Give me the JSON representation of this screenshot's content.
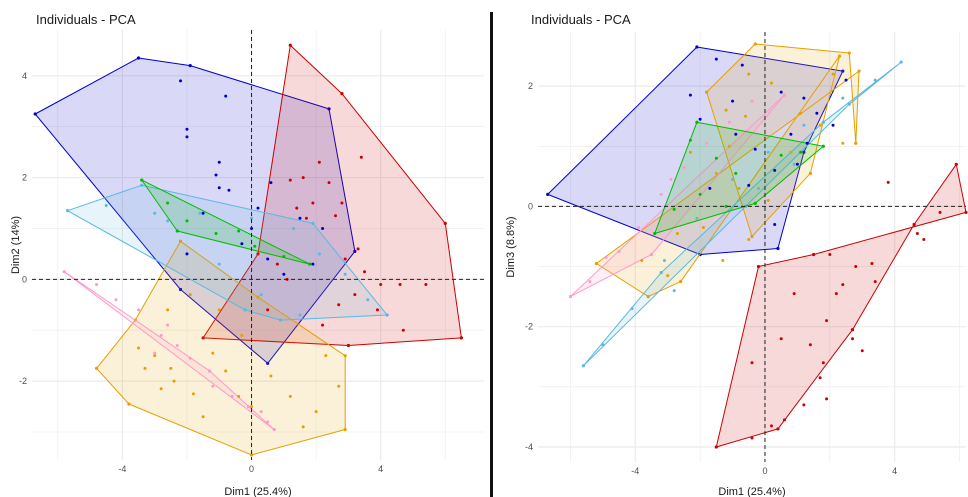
{
  "chart_data": [
    {
      "type": "scatter",
      "title": "Individuals - PCA",
      "xlabel": "Dim1 (25.4%)",
      "ylabel": "Dim2 (14%)",
      "xlim": [
        -6.8,
        7.2
      ],
      "ylim": [
        -3.55,
        4.9
      ],
      "xticks": [
        -4,
        0,
        4
      ],
      "yticks": [
        -2,
        0,
        2,
        4
      ],
      "grid": true,
      "reference_lines": {
        "x": 0,
        "y": 0
      },
      "series": [
        {
          "color": "#0000cc",
          "hull": [
            [
              -6.7,
              3.25
            ],
            [
              -3.5,
              4.35
            ],
            [
              -1.9,
              4.2
            ],
            [
              2.4,
              3.35
            ],
            [
              3.2,
              0.55
            ],
            [
              0.5,
              -1.65
            ],
            [
              -2.2,
              -0.2
            ]
          ],
          "points": [
            [
              -2.2,
              3.9
            ],
            [
              -0.8,
              3.6
            ],
            [
              -2.0,
              2.95
            ],
            [
              -2.0,
              2.8
            ],
            [
              -1.0,
              2.3
            ],
            [
              -1.1,
              2.05
            ],
            [
              -1.0,
              1.8
            ],
            [
              -0.7,
              1.75
            ],
            [
              0.0,
              1.0
            ],
            [
              -0.3,
              0.7
            ],
            [
              0.5,
              0.4
            ],
            [
              1.0,
              0.1
            ],
            [
              -1.5,
              1.3
            ],
            [
              0.2,
              1.4
            ],
            [
              0.6,
              1.9
            ],
            [
              1.5,
              1.2
            ],
            [
              2.2,
              1.0
            ],
            [
              -2.0,
              0.5
            ],
            [
              1.9,
              0.3
            ]
          ]
        },
        {
          "color": "#cc0000",
          "hull": [
            [
              1.2,
              4.6
            ],
            [
              2.8,
              3.65
            ],
            [
              6.0,
              1.1
            ],
            [
              6.5,
              -1.15
            ],
            [
              3.0,
              -1.3
            ],
            [
              -1.5,
              -1.15
            ],
            [
              0.2,
              0.5
            ]
          ],
          "points": [
            [
              3.4,
              2.4
            ],
            [
              2.1,
              2.3
            ],
            [
              1.6,
              2.0
            ],
            [
              1.2,
              1.95
            ],
            [
              2.4,
              1.9
            ],
            [
              1.9,
              1.5
            ],
            [
              1.4,
              1.4
            ],
            [
              2.8,
              1.5
            ],
            [
              2.6,
              1.25
            ],
            [
              1.7,
              1.2
            ],
            [
              3.3,
              0.6
            ],
            [
              2.9,
              0.4
            ],
            [
              3.5,
              0.15
            ],
            [
              4.0,
              -0.1
            ],
            [
              4.6,
              -0.1
            ],
            [
              5.4,
              -0.1
            ],
            [
              3.2,
              -0.3
            ],
            [
              3.9,
              -0.6
            ],
            [
              4.7,
              -1.0
            ],
            [
              2.2,
              -0.9
            ],
            [
              2.7,
              -0.5
            ],
            [
              0.8,
              0.3
            ],
            [
              1.1,
              0.0
            ],
            [
              0.5,
              -0.6
            ]
          ]
        },
        {
          "color": "#e69f00",
          "hull": [
            [
              -2.2,
              0.75
            ],
            [
              -3.6,
              -0.8
            ],
            [
              -4.8,
              -1.75
            ],
            [
              -3.8,
              -2.45
            ],
            [
              0.0,
              -3.45
            ],
            [
              2.9,
              -2.95
            ],
            [
              2.9,
              -1.5
            ],
            [
              0.2,
              -0.35
            ]
          ],
          "points": [
            [
              -2.6,
              -0.6
            ],
            [
              -3.5,
              -1.35
            ],
            [
              -3.0,
              -1.5
            ],
            [
              -2.5,
              -1.75
            ],
            [
              -3.3,
              -1.75
            ],
            [
              -2.4,
              -2.0
            ],
            [
              -1.8,
              -2.25
            ],
            [
              -1.2,
              -1.45
            ],
            [
              -0.8,
              -1.8
            ],
            [
              -0.4,
              -2.3
            ],
            [
              0.6,
              -1.9
            ],
            [
              1.2,
              -2.3
            ],
            [
              2.0,
              -2.6
            ],
            [
              2.7,
              -2.1
            ],
            [
              -2.8,
              -2.15
            ],
            [
              -1.5,
              -2.7
            ],
            [
              0.0,
              -2.5
            ],
            [
              1.6,
              -2.9
            ],
            [
              2.3,
              -1.5
            ],
            [
              -0.3,
              -1.1
            ],
            [
              -1.0,
              -0.6
            ],
            [
              -1.9,
              -0.3
            ]
          ]
        },
        {
          "color": "#ff99cc",
          "hull": [
            [
              -5.8,
              0.15
            ],
            [
              -1.3,
              -1.8
            ],
            [
              0.7,
              -2.95
            ]
          ],
          "points": [
            [
              -4.2,
              -0.4
            ],
            [
              -3.5,
              -0.6
            ],
            [
              -2.8,
              -1.1
            ],
            [
              -2.3,
              -1.3
            ],
            [
              -1.9,
              -1.55
            ],
            [
              -1.2,
              -2.1
            ],
            [
              -0.6,
              -2.3
            ],
            [
              -0.1,
              -2.5
            ],
            [
              0.5,
              -2.8
            ],
            [
              -2.6,
              -0.9
            ],
            [
              -4.8,
              -0.1
            ],
            [
              -3.0,
              -1.45
            ],
            [
              0.3,
              -2.6
            ]
          ]
        },
        {
          "color": "#5bb8e0",
          "hull": [
            [
              -5.7,
              1.35
            ],
            [
              -3.4,
              1.85
            ],
            [
              1.9,
              1.1
            ],
            [
              4.2,
              -0.7
            ],
            [
              0.9,
              -0.8
            ],
            [
              -0.2,
              -0.6
            ]
          ],
          "points": [
            [
              -4.5,
              1.45
            ],
            [
              -3.0,
              1.3
            ],
            [
              -1.6,
              1.3
            ],
            [
              0.0,
              1.2
            ],
            [
              1.3,
              1.0
            ],
            [
              2.1,
              0.5
            ],
            [
              2.9,
              0.1
            ],
            [
              3.6,
              -0.4
            ],
            [
              0.3,
              -0.3
            ],
            [
              -1.0,
              0.3
            ],
            [
              -2.6,
              1.15
            ],
            [
              1.5,
              -0.7
            ]
          ]
        },
        {
          "color": "#00bb00",
          "hull": [
            [
              -3.4,
              1.95
            ],
            [
              1.8,
              0.3
            ],
            [
              -2.3,
              0.95
            ]
          ],
          "points": [
            [
              -2.0,
              1.15
            ],
            [
              -1.1,
              0.9
            ],
            [
              0.1,
              0.65
            ],
            [
              1.0,
              0.45
            ],
            [
              -2.6,
              1.5
            ],
            [
              -0.4,
              0.95
            ]
          ]
        }
      ]
    },
    {
      "type": "scatter",
      "title": "Individuals - PCA",
      "xlabel": "Dim1 (25.4%)",
      "ylabel": "Dim3 (8.8%)",
      "xlim": [
        -7.0,
        6.2
      ],
      "ylim": [
        -4.25,
        2.9
      ],
      "xticks": [
        -4,
        0,
        4
      ],
      "yticks": [
        -4,
        -2,
        0,
        2
      ],
      "grid": true,
      "reference_lines": {
        "x": 0,
        "y": 0
      },
      "series": [
        {
          "color": "#0000cc",
          "hull": [
            [
              -6.7,
              0.2
            ],
            [
              -2.1,
              2.65
            ],
            [
              2.4,
              2.25
            ],
            [
              1.2,
              0.9
            ],
            [
              0.4,
              -0.7
            ],
            [
              -2.0,
              -0.8
            ]
          ],
          "points": [
            [
              -1.5,
              2.45
            ],
            [
              -0.7,
              2.35
            ],
            [
              -2.3,
              1.85
            ],
            [
              -2.0,
              1.45
            ],
            [
              -1.0,
              1.75
            ],
            [
              0.5,
              1.9
            ],
            [
              1.2,
              1.8
            ],
            [
              1.6,
              1.55
            ],
            [
              0.8,
              1.2
            ],
            [
              1.3,
              1.05
            ],
            [
              -0.9,
              1.2
            ],
            [
              -0.3,
              0.95
            ],
            [
              0.3,
              0.6
            ],
            [
              1.0,
              0.7
            ],
            [
              -1.7,
              0.3
            ],
            [
              -0.5,
              0.35
            ],
            [
              0.3,
              -0.3
            ],
            [
              2.1,
              1.35
            ],
            [
              2.5,
              2.1
            ]
          ]
        },
        {
          "color": "#cc0000",
          "hull": [
            [
              -1.5,
              -4.0
            ],
            [
              0.4,
              -3.7
            ],
            [
              2.7,
              -2.05
            ],
            [
              4.6,
              -0.3
            ],
            [
              5.9,
              0.7
            ],
            [
              6.2,
              -0.1
            ],
            [
              1.5,
              -0.8
            ],
            [
              -0.2,
              -1.0
            ]
          ],
          "points": [
            [
              -0.4,
              -3.85
            ],
            [
              0.6,
              -3.55
            ],
            [
              3.8,
              0.4
            ],
            [
              4.7,
              -0.45
            ],
            [
              4.9,
              -0.55
            ],
            [
              5.4,
              -0.1
            ],
            [
              2.0,
              -0.8
            ],
            [
              2.2,
              -1.45
            ],
            [
              2.8,
              -1.0
            ],
            [
              3.3,
              -0.95
            ],
            [
              3.4,
              -1.25
            ],
            [
              1.9,
              -1.9
            ],
            [
              2.7,
              -2.2
            ],
            [
              1.4,
              -2.3
            ],
            [
              1.8,
              -2.6
            ],
            [
              1.9,
              -3.2
            ],
            [
              1.2,
              -3.3
            ],
            [
              0.2,
              -3.65
            ],
            [
              0.5,
              -2.2
            ],
            [
              2.4,
              -1.3
            ],
            [
              1.7,
              -2.85
            ],
            [
              -0.4,
              -2.6
            ],
            [
              0.9,
              -1.45
            ],
            [
              3.0,
              -2.4
            ]
          ]
        },
        {
          "color": "#e69f00",
          "hull": [
            [
              -5.2,
              -0.95
            ],
            [
              -3.6,
              -1.5
            ],
            [
              -2.6,
              -1.25
            ],
            [
              2.3,
              2.5
            ],
            [
              1.4,
              0.55
            ],
            [
              -0.4,
              -0.5
            ],
            [
              -1.8,
              1.9
            ],
            [
              -0.3,
              2.7
            ],
            [
              2.6,
              2.55
            ],
            [
              2.8,
              1.05
            ],
            [
              2.9,
              2.25
            ]
          ],
          "points": [
            [
              -0.5,
              2.2
            ],
            [
              0.2,
              2.05
            ],
            [
              -1.2,
              1.6
            ],
            [
              -0.6,
              1.5
            ],
            [
              1.7,
              1.35
            ],
            [
              2.4,
              1.05
            ],
            [
              -2.3,
              0.9
            ],
            [
              -1.5,
              0.55
            ],
            [
              -0.8,
              0.3
            ],
            [
              0.1,
              0.1
            ],
            [
              -1.9,
              -0.35
            ],
            [
              -2.7,
              -0.45
            ],
            [
              -1.3,
              -0.9
            ],
            [
              -0.5,
              -0.55
            ],
            [
              -3.0,
              -1.15
            ],
            [
              -3.8,
              -0.9
            ],
            [
              -1.1,
              1.0
            ],
            [
              0.8,
              0.9
            ],
            [
              1.1,
              1.55
            ],
            [
              2.1,
              2.2
            ]
          ]
        },
        {
          "color": "#ff99cc",
          "hull": [
            [
              -6.0,
              -1.5
            ],
            [
              -3.5,
              -0.8
            ],
            [
              0.6,
              1.85
            ]
          ],
          "points": [
            [
              -5.4,
              -1.25
            ],
            [
              -4.5,
              -0.75
            ],
            [
              -3.9,
              -0.35
            ],
            [
              -3.2,
              0.2
            ],
            [
              -2.5,
              0.65
            ],
            [
              -1.8,
              1.05
            ],
            [
              -1.1,
              1.4
            ],
            [
              -0.4,
              1.75
            ],
            [
              -4.9,
              -0.85
            ],
            [
              -2.9,
              0.45
            ]
          ]
        },
        {
          "color": "#5bb8e0",
          "hull": [
            [
              -5.6,
              -2.65
            ],
            [
              -3.2,
              -1.1
            ],
            [
              1.8,
              1.4
            ],
            [
              4.2,
              2.4
            ],
            [
              2.6,
              1.7
            ],
            [
              -0.6,
              0.0
            ]
          ],
          "points": [
            [
              -5.0,
              -2.3
            ],
            [
              -4.1,
              -1.7
            ],
            [
              -3.1,
              -0.9
            ],
            [
              -2.1,
              -0.2
            ],
            [
              -1.0,
              0.45
            ],
            [
              0.1,
              0.9
            ],
            [
              1.2,
              1.35
            ],
            [
              2.4,
              1.8
            ],
            [
              3.4,
              2.1
            ],
            [
              -0.2,
              0.3
            ],
            [
              -2.8,
              -1.4
            ],
            [
              0.9,
              0.7
            ]
          ]
        },
        {
          "color": "#00bb00",
          "hull": [
            [
              -3.4,
              -0.45
            ],
            [
              -2.1,
              1.4
            ],
            [
              1.8,
              1.0
            ],
            [
              -0.3,
              0.05
            ]
          ],
          "points": [
            [
              -2.3,
              1.1
            ],
            [
              -1.5,
              0.8
            ],
            [
              -0.9,
              0.55
            ],
            [
              -2.0,
              0.2
            ],
            [
              -2.8,
              -0.05
            ],
            [
              0.5,
              0.85
            ],
            [
              1.1,
              0.9
            ],
            [
              -1.2,
              0.0
            ]
          ]
        }
      ]
    }
  ]
}
